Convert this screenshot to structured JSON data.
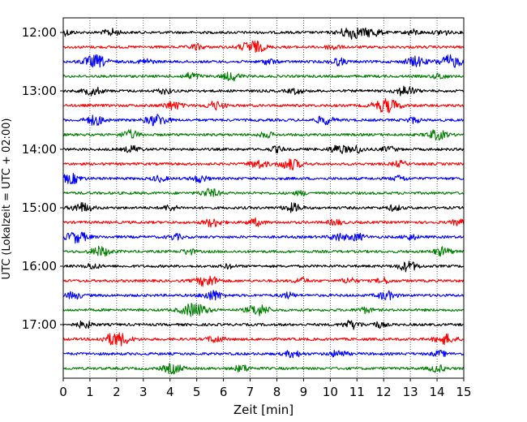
{
  "chart_data": {
    "type": "line",
    "title": "",
    "xlabel": "Zeit  [min]",
    "ylabel": "UTC (Lokalzeit = UTC + 02:00)",
    "xlim": [
      0,
      15
    ],
    "x_ticks": [
      "0",
      "1",
      "2",
      "3",
      "4",
      "5",
      "6",
      "7",
      "8",
      "9",
      "10",
      "11",
      "12",
      "13",
      "14",
      "15"
    ],
    "y_ticks": [
      "12:00",
      "13:00",
      "14:00",
      "15:00",
      "16:00",
      "17:00"
    ],
    "grid": "vertical dotted",
    "legend": "none",
    "color_cycle": [
      "#000000",
      "#ff0000",
      "#0000ff",
      "#008000"
    ],
    "series": [
      {
        "start": "12:00",
        "color": "#000000",
        "bursts": [
          [
            0.1,
            0.4
          ],
          [
            1.8,
            0.5
          ],
          [
            10.8,
            0.9
          ],
          [
            11.6,
            0.6
          ],
          [
            13.1,
            0.4
          ],
          [
            14.2,
            0.4
          ]
        ]
      },
      {
        "start": "12:15",
        "color": "#ff0000",
        "bursts": [
          [
            5.0,
            0.4
          ],
          [
            7.1,
            0.9
          ],
          [
            10.1,
            0.4
          ]
        ]
      },
      {
        "start": "12:30",
        "color": "#0000ff",
        "bursts": [
          [
            1.2,
            0.9
          ],
          [
            3.1,
            0.4
          ],
          [
            7.7,
            0.4
          ],
          [
            10.3,
            0.5
          ],
          [
            13.2,
            0.7
          ],
          [
            14.5,
            0.9
          ]
        ]
      },
      {
        "start": "12:45",
        "color": "#008000",
        "bursts": [
          [
            4.8,
            0.5
          ],
          [
            6.3,
            0.6
          ],
          [
            14.1,
            0.4
          ]
        ]
      },
      {
        "start": "13:00",
        "color": "#000000",
        "bursts": [
          [
            1.1,
            0.6
          ],
          [
            3.8,
            0.4
          ],
          [
            8.7,
            0.4
          ],
          [
            12.8,
            0.7
          ]
        ]
      },
      {
        "start": "13:15",
        "color": "#ff0000",
        "bursts": [
          [
            4.1,
            0.6
          ],
          [
            5.7,
            0.6
          ],
          [
            12.1,
            1.0
          ]
        ]
      },
      {
        "start": "13:30",
        "color": "#0000ff",
        "bursts": [
          [
            1.2,
            0.7
          ],
          [
            3.5,
            0.8
          ],
          [
            9.8,
            0.6
          ],
          [
            13.1,
            0.4
          ]
        ]
      },
      {
        "start": "13:45",
        "color": "#008000",
        "bursts": [
          [
            2.5,
            0.6
          ],
          [
            7.6,
            0.4
          ],
          [
            14.0,
            0.7
          ]
        ]
      },
      {
        "start": "14:00",
        "color": "#000000",
        "bursts": [
          [
            2.6,
            0.5
          ],
          [
            8.0,
            0.4
          ],
          [
            10.3,
            0.6
          ],
          [
            11.0,
            0.5
          ],
          [
            12.2,
            0.4
          ]
        ]
      },
      {
        "start": "14:15",
        "color": "#ff0000",
        "bursts": [
          [
            7.3,
            0.6
          ],
          [
            8.5,
            0.8
          ],
          [
            12.6,
            0.4
          ]
        ]
      },
      {
        "start": "14:30",
        "color": "#0000ff",
        "bursts": [
          [
            0.3,
            0.7
          ],
          [
            3.6,
            0.4
          ],
          [
            5.1,
            0.5
          ],
          [
            12.6,
            0.4
          ]
        ]
      },
      {
        "start": "14:45",
        "color": "#008000",
        "bursts": [
          [
            5.5,
            0.6
          ],
          [
            8.9,
            0.3
          ]
        ]
      },
      {
        "start": "15:00",
        "color": "#000000",
        "bursts": [
          [
            0.7,
            0.7
          ],
          [
            4.0,
            0.4
          ],
          [
            8.6,
            0.6
          ],
          [
            12.4,
            0.4
          ]
        ]
      },
      {
        "start": "15:15",
        "color": "#ff0000",
        "bursts": [
          [
            5.6,
            0.6
          ],
          [
            7.2,
            0.5
          ],
          [
            10.2,
            0.4
          ],
          [
            14.8,
            0.4
          ]
        ]
      },
      {
        "start": "15:30",
        "color": "#0000ff",
        "bursts": [
          [
            0.5,
            0.8
          ],
          [
            4.2,
            0.4
          ],
          [
            10.3,
            0.5
          ],
          [
            11.0,
            0.5
          ],
          [
            13.0,
            0.4
          ]
        ]
      },
      {
        "start": "15:45",
        "color": "#008000",
        "bursts": [
          [
            1.4,
            0.7
          ],
          [
            4.7,
            0.4
          ],
          [
            14.2,
            0.6
          ]
        ]
      },
      {
        "start": "16:00",
        "color": "#000000",
        "bursts": [
          [
            1.1,
            0.4
          ],
          [
            6.2,
            0.3
          ],
          [
            12.9,
            0.7
          ]
        ]
      },
      {
        "start": "16:15",
        "color": "#ff0000",
        "bursts": [
          [
            5.4,
            0.8
          ],
          [
            8.9,
            0.4
          ],
          [
            10.7,
            0.4
          ],
          [
            12.0,
            0.4
          ]
        ]
      },
      {
        "start": "16:30",
        "color": "#0000ff",
        "bursts": [
          [
            0.4,
            0.5
          ],
          [
            5.6,
            0.7
          ],
          [
            8.4,
            0.4
          ],
          [
            12.1,
            0.6
          ]
        ]
      },
      {
        "start": "16:45",
        "color": "#008000",
        "bursts": [
          [
            4.9,
            1.0
          ],
          [
            7.3,
            0.8
          ],
          [
            11.3,
            0.4
          ]
        ]
      },
      {
        "start": "17:00",
        "color": "#000000",
        "bursts": [
          [
            0.8,
            0.5
          ],
          [
            10.8,
            0.6
          ],
          [
            11.8,
            0.4
          ]
        ]
      },
      {
        "start": "17:15",
        "color": "#ff0000",
        "bursts": [
          [
            2.0,
            1.0
          ],
          [
            5.7,
            0.5
          ],
          [
            14.3,
            0.7
          ]
        ]
      },
      {
        "start": "17:30",
        "color": "#0000ff",
        "bursts": [
          [
            8.6,
            0.5
          ],
          [
            10.3,
            0.5
          ],
          [
            14.1,
            0.4
          ]
        ]
      },
      {
        "start": "17:45",
        "color": "#008000",
        "bursts": [
          [
            4.1,
            0.7
          ],
          [
            6.7,
            0.5
          ],
          [
            14.0,
            0.5
          ]
        ]
      }
    ]
  }
}
